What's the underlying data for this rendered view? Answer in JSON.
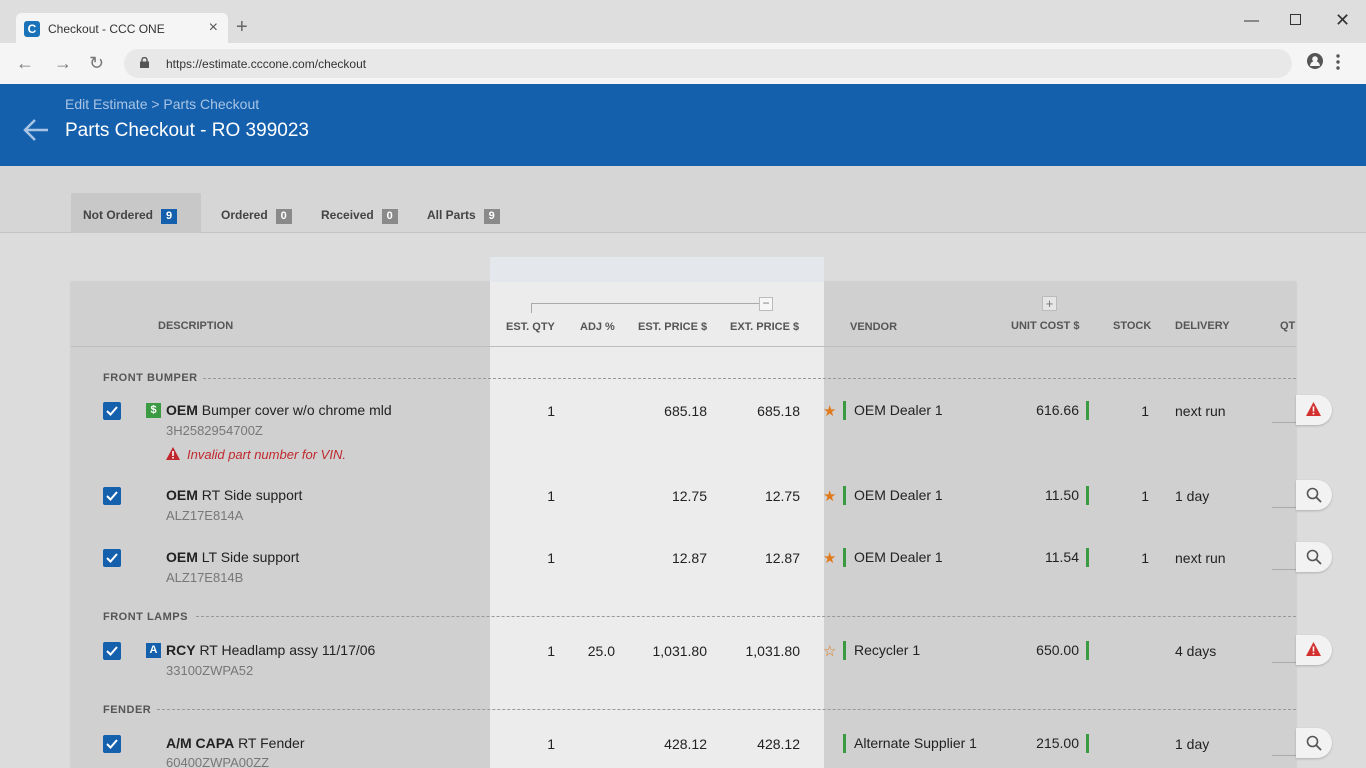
{
  "browser": {
    "tab_title": "Checkout - CCC ONE",
    "favicon": "C",
    "url": "https://estimate.cccone.com/checkout"
  },
  "header": {
    "breadcrumb": "Edit Estimate > Parts Checkout",
    "title": "Parts Checkout - RO 399023"
  },
  "tabs": [
    {
      "label": "Not Ordered",
      "count": "9"
    },
    {
      "label": "Ordered",
      "count": "0"
    },
    {
      "label": "Received",
      "count": "0"
    },
    {
      "label": "All Parts",
      "count": "9"
    }
  ],
  "columns": {
    "description": "DESCRIPTION",
    "est_qty": "EST. QTY",
    "adj": "ADJ %",
    "est_price": "EST. PRICE $",
    "ext_price": "EXT. PRICE $",
    "vendor": "VENDOR",
    "unit_cost": "UNIT COST $",
    "stock": "STOCK",
    "delivery": "DELIVERY",
    "qty": "QT"
  },
  "sections": {
    "front_bumper": "FRONT BUMPER",
    "front_lamps": "FRONT LAMPS",
    "fender": "FENDER"
  },
  "rows": [
    {
      "type_badge": "$",
      "prefix": "OEM",
      "desc": "Bumper cover w/o chrome mld",
      "part_no": "3H2582954700Z",
      "warning": "Invalid part number for VIN.",
      "est_qty": "1",
      "adj": "",
      "est_price": "685.18",
      "ext_price": "685.18",
      "vendor": "OEM Dealer 1",
      "unit_cost": "616.66",
      "stock": "1",
      "delivery": "next run"
    },
    {
      "type_badge": "",
      "prefix": "OEM",
      "desc": "RT Side support",
      "part_no": "ALZ17E814A",
      "est_qty": "1",
      "adj": "",
      "est_price": "12.75",
      "ext_price": "12.75",
      "vendor": "OEM Dealer 1",
      "unit_cost": "11.50",
      "stock": "1",
      "delivery": "1 day"
    },
    {
      "type_badge": "",
      "prefix": "OEM",
      "desc": "LT Side support",
      "part_no": "ALZ17E814B",
      "est_qty": "1",
      "adj": "",
      "est_price": "12.87",
      "ext_price": "12.87",
      "vendor": "OEM Dealer 1",
      "unit_cost": "11.54",
      "stock": "1",
      "delivery": "next run"
    },
    {
      "type_badge": "A",
      "prefix": "RCY",
      "desc": "RT Headlamp assy 11/17/06",
      "part_no": "33100ZWPA52",
      "est_qty": "1",
      "adj": "25.0",
      "est_price": "1,031.80",
      "ext_price": "1,031.80",
      "vendor": "Recycler 1",
      "unit_cost": "650.00",
      "stock": "",
      "delivery": "4 days"
    },
    {
      "type_badge": "",
      "prefix": "A/M CAPA",
      "desc": "RT Fender",
      "part_no": "60400ZWPA00ZZ",
      "est_qty": "1",
      "adj": "",
      "est_price": "428.12",
      "ext_price": "428.12",
      "vendor": "Alternate Supplier 1",
      "unit_cost": "215.00",
      "stock": "",
      "delivery": "1 day"
    }
  ],
  "colors": {
    "brand": "#1460ad",
    "accent_green": "#3a9b43",
    "warning_red": "#c0282e",
    "star_orange": "#e07a1c"
  }
}
